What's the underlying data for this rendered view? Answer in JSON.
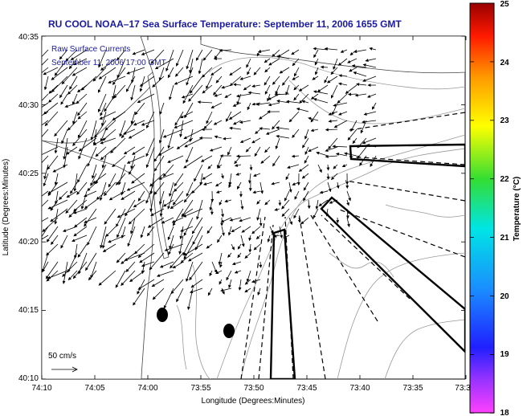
{
  "title": "RU COOL  NOAA–17  Sea Surface Temperature:  September 11, 2006 1655 GMT",
  "annotations": {
    "line1": "Raw Surface Currents",
    "line2": "September 11, 2006 17:00 GMT",
    "scale_label": "50 cm/s"
  },
  "axes": {
    "xlabel": "Longitude (Degrees:Minutes)",
    "ylabel": "Latitude (Degrees:Minutes)",
    "xticks": [
      "74:10",
      "74:05",
      "74:00",
      "73:55",
      "73:50",
      "73:45",
      "73:40",
      "73:35",
      "73:3"
    ],
    "yticks": [
      "40:35",
      "40:30",
      "40:25",
      "40:20",
      "40:15",
      "40:10"
    ]
  },
  "colorbar": {
    "label": "Temperature (°C)",
    "ticks": [
      "25",
      "24",
      "23",
      "22",
      "21",
      "20",
      "19",
      "18"
    ],
    "min": 18,
    "max": 25
  },
  "colors": {
    "title": "#1a1aa0",
    "arrows": "#000000",
    "land": "#ffffff",
    "contours": "#999999"
  },
  "map": {
    "lon_range": [
      "74:10W",
      "73:30W"
    ],
    "lat_range": [
      "40:10N",
      "40:35N"
    ],
    "features": [
      "coastline",
      "bathymetry-contours",
      "shipping-lanes",
      "surface-current-vectors"
    ]
  }
}
